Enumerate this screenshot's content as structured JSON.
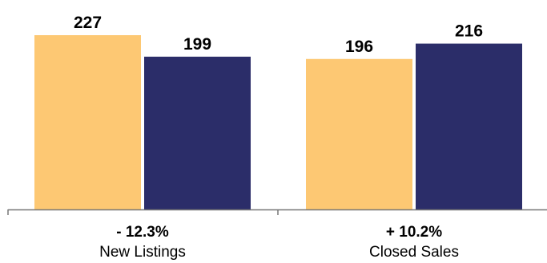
{
  "chart_data": {
    "type": "bar",
    "categories": [
      "New Listings",
      "Closed Sales"
    ],
    "changes": [
      "- 12.3%",
      "+ 10.2%"
    ],
    "series": [
      {
        "values": [
          227,
          196
        ],
        "color": "#FDC873"
      },
      {
        "values": [
          199,
          216
        ],
        "color": "#2B2D69"
      }
    ],
    "ylim": [
      0,
      227
    ],
    "grid": false,
    "legend": "none",
    "axis_color": "#777777"
  }
}
